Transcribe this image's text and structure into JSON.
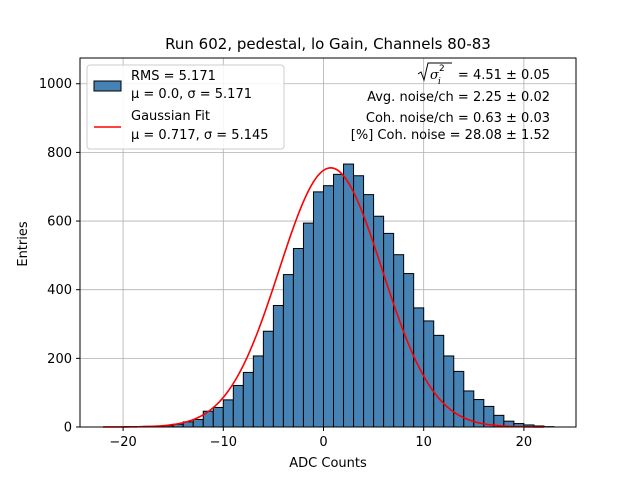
{
  "chart_data": {
    "type": "bar",
    "title": "Run 602, pedestal, lo Gain, Channels 80-83",
    "xlabel": "ADC Counts",
    "ylabel": "Entries",
    "xlim": [
      -24.3,
      25.2
    ],
    "ylim": [
      0,
      1075
    ],
    "xticks": [
      -20,
      -10,
      0,
      10,
      20
    ],
    "xtick_labels": [
      "−20",
      "−10",
      "0",
      "10",
      "20"
    ],
    "yticks": [
      0,
      200,
      400,
      600,
      800,
      1000
    ],
    "ytick_labels": [
      "0",
      "200",
      "400",
      "600",
      "800",
      "1000"
    ],
    "grid": true,
    "legend_position": "top-left",
    "histogram": {
      "name": "RMS = 5.171",
      "sublabel": "μ = 0.0, σ = 5.171",
      "color": "#4682b4",
      "edge_color": "#000000",
      "bin_width": 1,
      "bin_start": -22,
      "values": [
        0,
        0,
        1,
        1,
        2,
        2,
        4,
        8,
        15,
        22,
        46,
        57,
        79,
        121,
        159,
        207,
        279,
        354,
        444,
        520,
        594,
        685,
        703,
        736,
        766,
        732,
        677,
        614,
        564,
        502,
        447,
        347,
        309,
        267,
        207,
        162,
        105,
        80,
        60,
        34,
        17,
        10,
        6,
        3,
        1,
        0
      ]
    },
    "fit": {
      "name": "Gaussian Fit",
      "sublabel": "μ = 0.717, σ = 5.145",
      "color": "#ff0000",
      "mu": 0.717,
      "sigma": 5.145,
      "amplitude": 755,
      "x_range": [
        -22,
        22
      ]
    },
    "annotations": {
      "sigma_prefix": "= 4.51 ± 0.05",
      "avg_noise": "Avg. noise/ch = 2.25 ± 0.02",
      "coh_noise": "Coh. noise/ch = 0.63 ± 0.03",
      "pct_coh": "[%] Coh. noise = 28.08 ± 1.52"
    }
  }
}
